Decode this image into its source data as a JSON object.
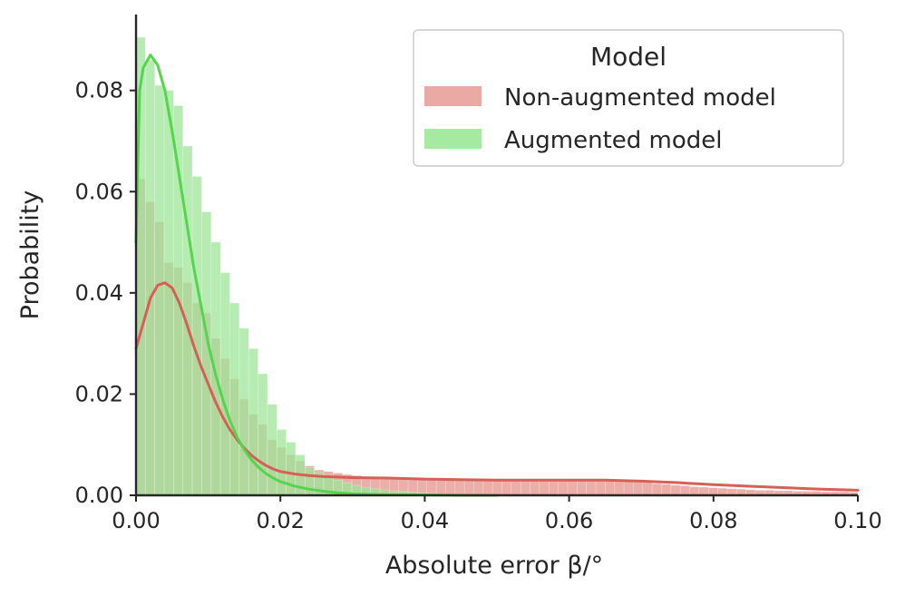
{
  "chart_data": {
    "type": "histogram",
    "xlabel": "Absolute error β/°",
    "ylabel": "Probability",
    "xlim": [
      0.0,
      0.1
    ],
    "ylim": [
      0.0,
      0.095
    ],
    "x_ticks": [
      "0.00",
      "0.02",
      "0.04",
      "0.06",
      "0.08",
      "0.10"
    ],
    "x_tick_values": [
      0.0,
      0.02,
      0.04,
      0.06,
      0.08,
      0.1
    ],
    "y_ticks": [
      "0.00",
      "0.02",
      "0.04",
      "0.06",
      "0.08"
    ],
    "y_tick_values": [
      0.0,
      0.02,
      0.04,
      0.06,
      0.08
    ],
    "grid": false,
    "legend": {
      "title": "Model",
      "placement": "top-right",
      "entries": [
        {
          "label": "Non-augmented model",
          "color": "#eaa9a4"
        },
        {
          "label": "Augmented model",
          "color": "#a6eaa1"
        }
      ]
    },
    "bin_width": 0.0013,
    "series": [
      {
        "name": "Non-augmented model",
        "bar_color": "#e8a09a",
        "kde_color": "#d75f55",
        "histogram": [
          0.0625,
          0.058,
          0.054,
          0.046,
          0.045,
          0.042,
          0.038,
          0.036,
          0.031,
          0.027,
          0.023,
          0.019,
          0.016,
          0.014,
          0.011,
          0.0095,
          0.008,
          0.0068,
          0.0058,
          0.005,
          0.0047,
          0.0044,
          0.0041,
          0.0039,
          0.0037,
          0.0036,
          0.0035,
          0.0034,
          0.0034,
          0.0033,
          0.0033,
          0.0032,
          0.0032,
          0.0032,
          0.0031,
          0.0031,
          0.0031,
          0.0031,
          0.003,
          0.003,
          0.003,
          0.003,
          0.003,
          0.003,
          0.0029,
          0.0029,
          0.0029,
          0.003,
          0.003,
          0.003,
          0.003,
          0.0029,
          0.0028,
          0.0026,
          0.0025,
          0.0023,
          0.0022,
          0.002,
          0.0019,
          0.0017,
          0.0016,
          0.0015,
          0.0014,
          0.0013,
          0.0012,
          0.0011,
          0.001,
          0.001,
          0.0009,
          0.0009,
          0.0008,
          0.0008,
          0.0008,
          0.0007,
          0.0007,
          0.0007,
          0.0006
        ],
        "kde_x": [
          0.0,
          0.001,
          0.002,
          0.003,
          0.004,
          0.005,
          0.006,
          0.007,
          0.008,
          0.009,
          0.01,
          0.011,
          0.012,
          0.013,
          0.014,
          0.015,
          0.016,
          0.017,
          0.018,
          0.019,
          0.02,
          0.022,
          0.024,
          0.026,
          0.028,
          0.03,
          0.035,
          0.04,
          0.045,
          0.05,
          0.055,
          0.06,
          0.065,
          0.07,
          0.075,
          0.08,
          0.085,
          0.09,
          0.095,
          0.1
        ],
        "kde_y": [
          0.029,
          0.034,
          0.039,
          0.0415,
          0.042,
          0.041,
          0.038,
          0.034,
          0.0295,
          0.0255,
          0.022,
          0.0185,
          0.0155,
          0.013,
          0.011,
          0.0093,
          0.0079,
          0.0068,
          0.0059,
          0.0052,
          0.0047,
          0.0042,
          0.0039,
          0.0037,
          0.0036,
          0.0035,
          0.0034,
          0.0032,
          0.0031,
          0.003,
          0.003,
          0.003,
          0.003,
          0.0028,
          0.0025,
          0.0021,
          0.0018,
          0.0015,
          0.0012,
          0.001
        ]
      },
      {
        "name": "Augmented model",
        "bar_color": "#9ee698",
        "kde_color": "#55d54d",
        "histogram": [
          0.0905,
          0.086,
          0.081,
          0.08,
          0.077,
          0.069,
          0.063,
          0.056,
          0.05,
          0.044,
          0.038,
          0.033,
          0.029,
          0.024,
          0.018,
          0.013,
          0.0105,
          0.008,
          0.0055,
          0.0045,
          0.0035,
          0.003,
          0.0025,
          0.002,
          0.0016,
          0.0013,
          0.0011,
          0.0009,
          0.0008,
          0.0006,
          0.0005,
          0.0004,
          0.0003,
          0.0002,
          0.0002
        ],
        "kde_x": [
          0.0,
          0.0005,
          0.001,
          0.002,
          0.003,
          0.004,
          0.005,
          0.006,
          0.007,
          0.008,
          0.009,
          0.01,
          0.011,
          0.012,
          0.013,
          0.014,
          0.015,
          0.016,
          0.017,
          0.018,
          0.019,
          0.02,
          0.022,
          0.024,
          0.026,
          0.028,
          0.03,
          0.032,
          0.035,
          0.04,
          0.045,
          0.05
        ],
        "kde_y": [
          0.05,
          0.08,
          0.0845,
          0.087,
          0.085,
          0.08,
          0.072,
          0.063,
          0.054,
          0.045,
          0.0375,
          0.03,
          0.024,
          0.019,
          0.0148,
          0.0115,
          0.009,
          0.007,
          0.0055,
          0.0043,
          0.0034,
          0.0027,
          0.0018,
          0.0012,
          0.0008,
          0.0005,
          0.0003,
          0.0002,
          0.0001,
          0.0001,
          0.0,
          0.0
        ]
      }
    ]
  }
}
